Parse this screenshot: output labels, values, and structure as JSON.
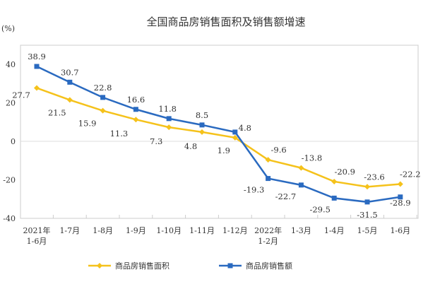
{
  "chart_data": {
    "type": "line",
    "title": "全国商品房销售面积及销售额增速",
    "ylabel": "(%)",
    "ylim": [
      -40,
      45
    ],
    "yticks": [
      40,
      20,
      0,
      -20,
      -40
    ],
    "categories": [
      [
        "2021年",
        "1-6月"
      ],
      [
        "1-7月"
      ],
      [
        "1-8月"
      ],
      [
        "1-9月"
      ],
      [
        "1-10月"
      ],
      [
        "1-11月"
      ],
      [
        "1-12月"
      ],
      [
        "2022年",
        "1-2月"
      ],
      [
        "1-3月"
      ],
      [
        "1-4月"
      ],
      [
        "1-5月"
      ],
      [
        "1-6月"
      ]
    ],
    "series": [
      {
        "name": "商品房销售面积",
        "color": "#f5c21b",
        "values": [
          27.7,
          21.5,
          15.9,
          11.3,
          7.3,
          4.8,
          1.9,
          -9.6,
          -13.8,
          -20.9,
          -23.6,
          -22.2
        ],
        "labels": [
          "27.7",
          "21.5",
          "15.9",
          "11.3",
          "7.3",
          "4.8",
          "1.9",
          "-9.6",
          "-13.8",
          "-20.9",
          "-23.6",
          "-22.2"
        ]
      },
      {
        "name": "商品房销售额",
        "color": "#2a6ac0",
        "values": [
          38.9,
          30.7,
          22.8,
          16.6,
          11.8,
          8.5,
          4.8,
          -19.3,
          -22.7,
          -29.5,
          -31.5,
          -28.9
        ],
        "labels": [
          "38.9",
          "30.7",
          "22.8",
          "16.6",
          "11.8",
          "8.5",
          "4.8",
          "-19.3",
          "-22.7",
          "-29.5",
          "-31.5",
          "-28.9"
        ]
      }
    ],
    "legend": "bottom"
  }
}
